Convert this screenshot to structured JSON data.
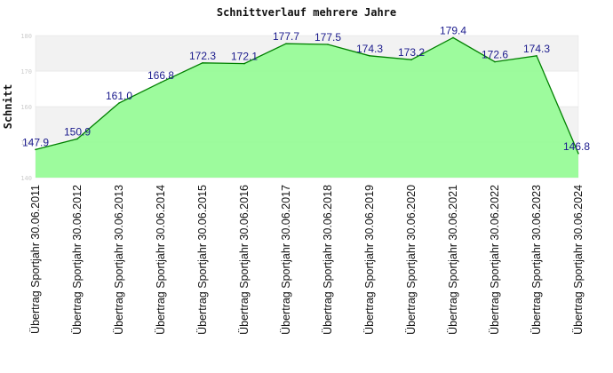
{
  "chart_data": {
    "type": "area",
    "title": "Schnittverlauf mehrere Jahre",
    "ylabel": "Schnitt",
    "xlabel": "",
    "ylim": [
      140,
      180
    ],
    "yticks": [
      140,
      150,
      160,
      170,
      180
    ],
    "grid": "horizontal bands",
    "categories": [
      "Übertrag Sportjahr 30.06.2011",
      "Übertrag Sportjahr 30.06.2012",
      "Übertrag Sportjahr 30.06.2013",
      "Übertrag Sportjahr 30.06.2014",
      "Übertrag Sportjahr 30.06.2015",
      "Übertrag Sportjahr 30.06.2016",
      "Übertrag Sportjahr 30.06.2017",
      "Übertrag Sportjahr 30.06.2018",
      "Übertrag Sportjahr 30.06.2019",
      "Übertrag Sportjahr 30.06.2020",
      "Übertrag Sportjahr 30.06.2021",
      "Übertrag Sportjahr 30.06.2022",
      "Übertrag Sportjahr 30.06.2023",
      "Übertrag Sportjahr 30.06.2024"
    ],
    "values": [
      147.9,
      150.9,
      161.0,
      166.8,
      172.3,
      172.1,
      177.7,
      177.5,
      174.3,
      173.2,
      179.4,
      172.6,
      174.3,
      146.8
    ],
    "data_labels": [
      "147.9",
      "150.9",
      "161.0",
      "166.8",
      "172.3",
      "172.1",
      "177.7",
      "177.5",
      "174.3",
      "173.2",
      "179.4",
      "172.6",
      "174.3",
      "146.8"
    ],
    "colors": {
      "fill": "#98fb98",
      "line": "#008000",
      "band": "#f2f2f2",
      "label": "#1a1a8c"
    }
  }
}
